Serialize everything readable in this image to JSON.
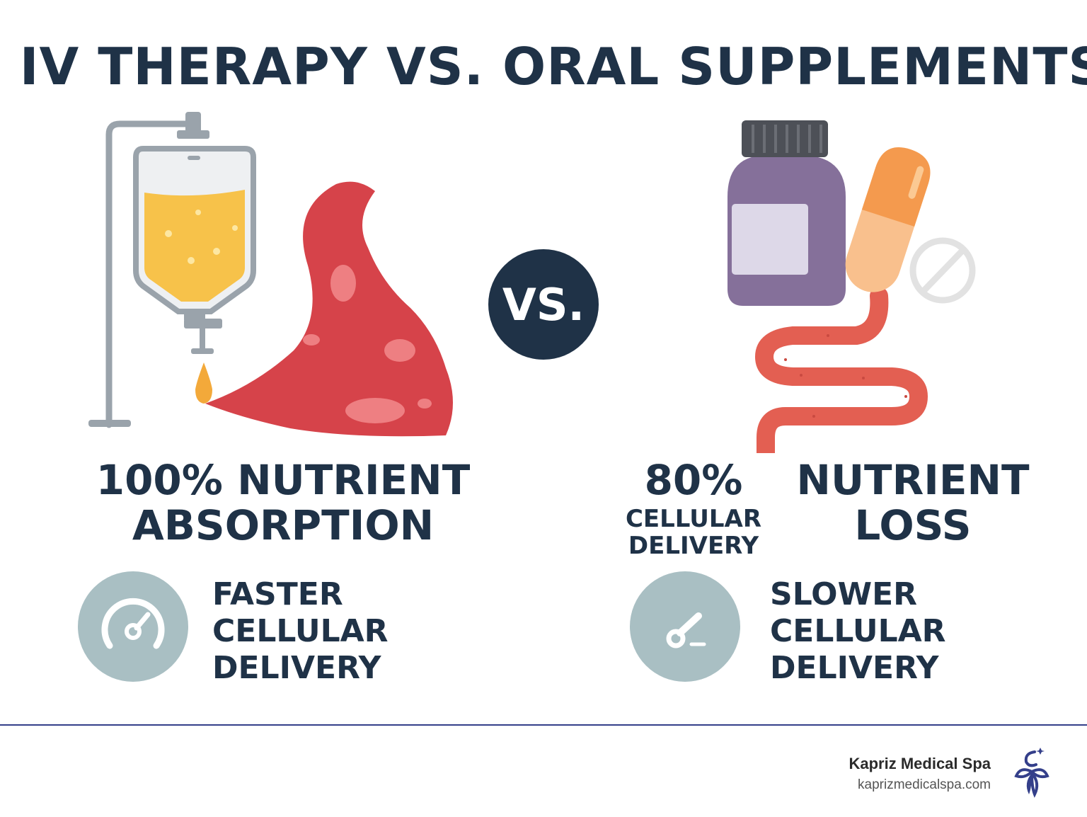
{
  "title": "IV THERAPY VS. ORAL SUPPLEMENTS",
  "vs_label": "VS.",
  "left": {
    "headline_line1": "100% NUTRIENT",
    "headline_line2": "ABSORPTION",
    "feature_line1": "FASTER",
    "feature_line2": "CELLULAR",
    "feature_line3": "DELIVERY",
    "icon": "gauge-icon"
  },
  "right": {
    "percent": "80%",
    "sub_line1": "CELLULAR",
    "sub_line2": "DELIVERY",
    "loss_line1": "NUTRIENT",
    "loss_line2": "LOSS",
    "feature_line1": "SLOWER",
    "feature_line2": "CELLULAR",
    "feature_line3": "DELIVERY",
    "icon": "broken-gauge-icon"
  },
  "footer": {
    "brand_name": "Kapriz Medical Spa",
    "brand_url": "kaprizmedicalspa.com"
  },
  "colors": {
    "navy": "#1f3247",
    "iv_fluid": "#f7c24a",
    "red_tissue": "#d6434a",
    "bottle_purple": "#85709a",
    "capsule_orange": "#f49a4e",
    "gauge_circle": "#a9bfc3",
    "divider": "#343f8a"
  }
}
